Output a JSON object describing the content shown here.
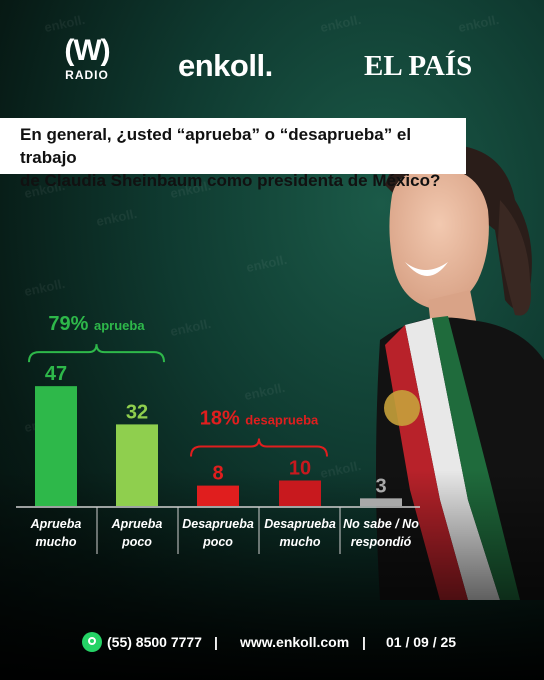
{
  "header": {
    "logo_w_mark": "(W)",
    "logo_w_sub": "RADIO",
    "logo_enkoll": "enkoll.",
    "logo_pais": "EL PAÍS",
    "watermark": "enkoll."
  },
  "question": {
    "line1": "En general, ¿usted “aprueba” o “desaprueba” el trabajo",
    "line2": "de Claudia Sheinbaum como presidenta de México?"
  },
  "chart_data": {
    "type": "bar",
    "categories": [
      [
        "Aprueba",
        "mucho"
      ],
      [
        "Aprueba",
        "poco"
      ],
      [
        "Desaprueba",
        "poco"
      ],
      [
        "Desaprueba",
        "mucho"
      ],
      [
        "No sabe / No",
        "respondió"
      ]
    ],
    "values": [
      47,
      32,
      8,
      10,
      3
    ],
    "colors": [
      "#2eb84a",
      "#8fcf4e",
      "#e01e1e",
      "#c8191e",
      "#a9a9a9"
    ],
    "groups": [
      {
        "pct": "79%",
        "label": "aprueba",
        "color": "#2eb84a",
        "span": [
          0,
          1
        ]
      },
      {
        "pct": "18%",
        "label": "desaprueba",
        "color": "#e01e1e",
        "span": [
          2,
          3
        ]
      }
    ]
  },
  "footer": {
    "phone": "(55) 8500 7777",
    "sep1": "|",
    "website": "www.enkoll.com",
    "sep2": "|",
    "date": "01 / 09 / 25"
  }
}
